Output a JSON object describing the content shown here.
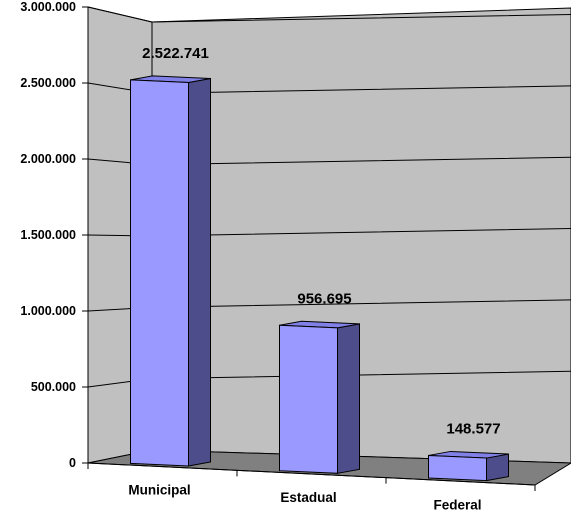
{
  "chart_data": {
    "type": "bar",
    "categories": [
      "Municipal",
      "Estadual",
      "Federal"
    ],
    "values": [
      2522741,
      956695,
      148577
    ],
    "data_labels": [
      "2.522.741",
      "956.695",
      "148.577"
    ],
    "ylim": [
      0,
      3000000
    ],
    "yticks": [
      0,
      500000,
      1000000,
      1500000,
      2000000,
      2500000,
      3000000
    ],
    "ytick_labels": [
      "0",
      "500.000",
      "1.000.000",
      "1.500.000",
      "2.000.000",
      "2.500.000",
      "3.000.000"
    ],
    "title": "",
    "xlabel": "",
    "ylabel": "",
    "grid": true,
    "legend": "none",
    "style": "3d-column",
    "colors": {
      "bar_front": "#9999ff",
      "bar_side": "#4d4d8c",
      "bar_top": "#8080e6",
      "wall": "#c0c0c0",
      "floor": "#808080",
      "grid": "#000000"
    }
  }
}
